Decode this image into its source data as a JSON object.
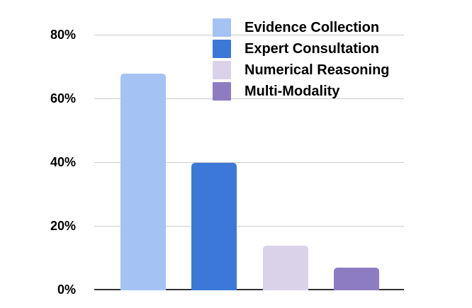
{
  "chart_data": {
    "type": "bar",
    "title": "",
    "xlabel": "",
    "ylabel": "",
    "categories": [
      "Evidence Collection",
      "Expert Consultation",
      "Numerical Reasoning",
      "Multi-Modality"
    ],
    "values": [
      68,
      40,
      14,
      7
    ],
    "unit": "%",
    "ylim": [
      0,
      80
    ],
    "ytick_interval": 20,
    "ytick_labels": [
      "0%",
      "20%",
      "40%",
      "60%",
      "80%"
    ],
    "grid": "horizontal",
    "gridline_color": "#cccccc",
    "axis_line_color": "#333333",
    "legend_position": "top-right-overlay",
    "colors": [
      "#a4c2f4",
      "#3c78d8",
      "#d9d2e9",
      "#8e7cc3"
    ]
  }
}
